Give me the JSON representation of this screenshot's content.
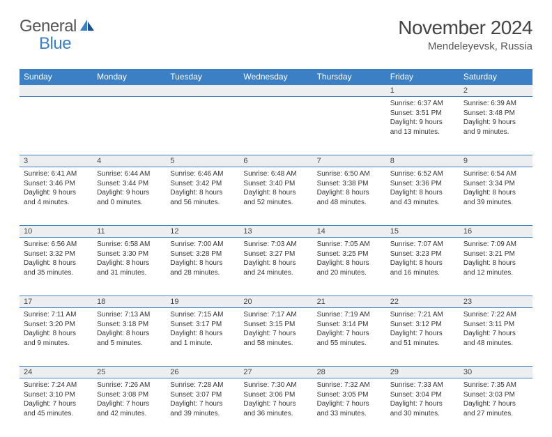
{
  "brand": {
    "part1": "General",
    "part2": "Blue"
  },
  "title": "November 2024",
  "location": "Mendeleyevsk, Russia",
  "colors": {
    "accent": "#3b7fc4",
    "header_bg": "#eceef0",
    "text": "#333333"
  },
  "day_headers": [
    "Sunday",
    "Monday",
    "Tuesday",
    "Wednesday",
    "Thursday",
    "Friday",
    "Saturday"
  ],
  "weeks": [
    [
      {
        "n": "",
        "lines": []
      },
      {
        "n": "",
        "lines": []
      },
      {
        "n": "",
        "lines": []
      },
      {
        "n": "",
        "lines": []
      },
      {
        "n": "",
        "lines": []
      },
      {
        "n": "1",
        "lines": [
          "Sunrise: 6:37 AM",
          "Sunset: 3:51 PM",
          "Daylight: 9 hours",
          "and 13 minutes."
        ]
      },
      {
        "n": "2",
        "lines": [
          "Sunrise: 6:39 AM",
          "Sunset: 3:48 PM",
          "Daylight: 9 hours",
          "and 9 minutes."
        ]
      }
    ],
    [
      {
        "n": "3",
        "lines": [
          "Sunrise: 6:41 AM",
          "Sunset: 3:46 PM",
          "Daylight: 9 hours",
          "and 4 minutes."
        ]
      },
      {
        "n": "4",
        "lines": [
          "Sunrise: 6:44 AM",
          "Sunset: 3:44 PM",
          "Daylight: 9 hours",
          "and 0 minutes."
        ]
      },
      {
        "n": "5",
        "lines": [
          "Sunrise: 6:46 AM",
          "Sunset: 3:42 PM",
          "Daylight: 8 hours",
          "and 56 minutes."
        ]
      },
      {
        "n": "6",
        "lines": [
          "Sunrise: 6:48 AM",
          "Sunset: 3:40 PM",
          "Daylight: 8 hours",
          "and 52 minutes."
        ]
      },
      {
        "n": "7",
        "lines": [
          "Sunrise: 6:50 AM",
          "Sunset: 3:38 PM",
          "Daylight: 8 hours",
          "and 48 minutes."
        ]
      },
      {
        "n": "8",
        "lines": [
          "Sunrise: 6:52 AM",
          "Sunset: 3:36 PM",
          "Daylight: 8 hours",
          "and 43 minutes."
        ]
      },
      {
        "n": "9",
        "lines": [
          "Sunrise: 6:54 AM",
          "Sunset: 3:34 PM",
          "Daylight: 8 hours",
          "and 39 minutes."
        ]
      }
    ],
    [
      {
        "n": "10",
        "lines": [
          "Sunrise: 6:56 AM",
          "Sunset: 3:32 PM",
          "Daylight: 8 hours",
          "and 35 minutes."
        ]
      },
      {
        "n": "11",
        "lines": [
          "Sunrise: 6:58 AM",
          "Sunset: 3:30 PM",
          "Daylight: 8 hours",
          "and 31 minutes."
        ]
      },
      {
        "n": "12",
        "lines": [
          "Sunrise: 7:00 AM",
          "Sunset: 3:28 PM",
          "Daylight: 8 hours",
          "and 28 minutes."
        ]
      },
      {
        "n": "13",
        "lines": [
          "Sunrise: 7:03 AM",
          "Sunset: 3:27 PM",
          "Daylight: 8 hours",
          "and 24 minutes."
        ]
      },
      {
        "n": "14",
        "lines": [
          "Sunrise: 7:05 AM",
          "Sunset: 3:25 PM",
          "Daylight: 8 hours",
          "and 20 minutes."
        ]
      },
      {
        "n": "15",
        "lines": [
          "Sunrise: 7:07 AM",
          "Sunset: 3:23 PM",
          "Daylight: 8 hours",
          "and 16 minutes."
        ]
      },
      {
        "n": "16",
        "lines": [
          "Sunrise: 7:09 AM",
          "Sunset: 3:21 PM",
          "Daylight: 8 hours",
          "and 12 minutes."
        ]
      }
    ],
    [
      {
        "n": "17",
        "lines": [
          "Sunrise: 7:11 AM",
          "Sunset: 3:20 PM",
          "Daylight: 8 hours",
          "and 9 minutes."
        ]
      },
      {
        "n": "18",
        "lines": [
          "Sunrise: 7:13 AM",
          "Sunset: 3:18 PM",
          "Daylight: 8 hours",
          "and 5 minutes."
        ]
      },
      {
        "n": "19",
        "lines": [
          "Sunrise: 7:15 AM",
          "Sunset: 3:17 PM",
          "Daylight: 8 hours",
          "and 1 minute."
        ]
      },
      {
        "n": "20",
        "lines": [
          "Sunrise: 7:17 AM",
          "Sunset: 3:15 PM",
          "Daylight: 7 hours",
          "and 58 minutes."
        ]
      },
      {
        "n": "21",
        "lines": [
          "Sunrise: 7:19 AM",
          "Sunset: 3:14 PM",
          "Daylight: 7 hours",
          "and 55 minutes."
        ]
      },
      {
        "n": "22",
        "lines": [
          "Sunrise: 7:21 AM",
          "Sunset: 3:12 PM",
          "Daylight: 7 hours",
          "and 51 minutes."
        ]
      },
      {
        "n": "23",
        "lines": [
          "Sunrise: 7:22 AM",
          "Sunset: 3:11 PM",
          "Daylight: 7 hours",
          "and 48 minutes."
        ]
      }
    ],
    [
      {
        "n": "24",
        "lines": [
          "Sunrise: 7:24 AM",
          "Sunset: 3:10 PM",
          "Daylight: 7 hours",
          "and 45 minutes."
        ]
      },
      {
        "n": "25",
        "lines": [
          "Sunrise: 7:26 AM",
          "Sunset: 3:08 PM",
          "Daylight: 7 hours",
          "and 42 minutes."
        ]
      },
      {
        "n": "26",
        "lines": [
          "Sunrise: 7:28 AM",
          "Sunset: 3:07 PM",
          "Daylight: 7 hours",
          "and 39 minutes."
        ]
      },
      {
        "n": "27",
        "lines": [
          "Sunrise: 7:30 AM",
          "Sunset: 3:06 PM",
          "Daylight: 7 hours",
          "and 36 minutes."
        ]
      },
      {
        "n": "28",
        "lines": [
          "Sunrise: 7:32 AM",
          "Sunset: 3:05 PM",
          "Daylight: 7 hours",
          "and 33 minutes."
        ]
      },
      {
        "n": "29",
        "lines": [
          "Sunrise: 7:33 AM",
          "Sunset: 3:04 PM",
          "Daylight: 7 hours",
          "and 30 minutes."
        ]
      },
      {
        "n": "30",
        "lines": [
          "Sunrise: 7:35 AM",
          "Sunset: 3:03 PM",
          "Daylight: 7 hours",
          "and 27 minutes."
        ]
      }
    ]
  ]
}
